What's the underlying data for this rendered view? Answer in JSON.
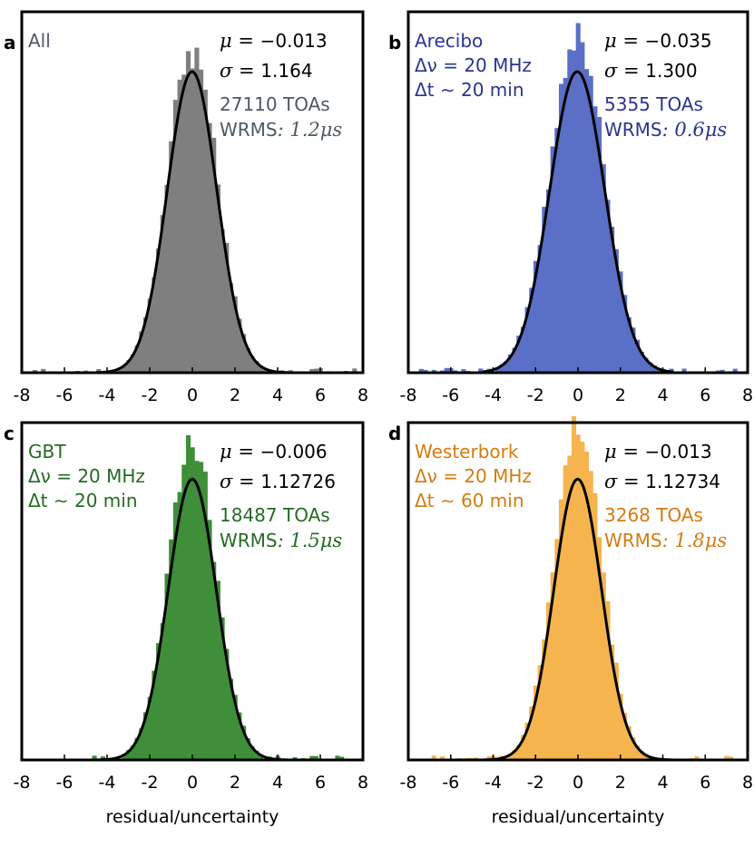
{
  "chart_data": [
    {
      "type": "bar",
      "panel_label": "a",
      "name": "All",
      "color": "#7f7f7f",
      "text_color": "#4d5a63",
      "mu_label": "μ = ",
      "mu_value": "−0.013",
      "sigma_label": "σ = ",
      "sigma_value": "1.164",
      "mu": -0.013,
      "sigma": 1.164,
      "lines": [],
      "toas": "27110 TOAs",
      "wrms_label": "WRMS",
      "wrms_value": ": 1.2μs",
      "peak": 1.07,
      "xlabel": "",
      "xlim": [
        -8,
        8
      ],
      "xticks": [
        "-8",
        "-6",
        "-4",
        "-2",
        "0",
        "2",
        "4",
        "6",
        "8"
      ]
    },
    {
      "type": "bar",
      "panel_label": "b",
      "name": "Arecibo",
      "color": "#5a6fc6",
      "text_color": "#2b3491",
      "mu_label": "μ = ",
      "mu_value": "−0.035",
      "sigma_label": "σ = ",
      "sigma_value": "1.300",
      "mu": -0.035,
      "sigma": 1.3,
      "lines": [
        "Δν =  20 MHz",
        "Δt ∼  20 min"
      ],
      "toas": "5355 TOAs",
      "wrms_label": "WRMS",
      "wrms_value": ": 0.6μs",
      "peak": 1.12,
      "xlabel": "",
      "xlim": [
        -8,
        8
      ],
      "xticks": [
        "-8",
        "-6",
        "-4",
        "-2",
        "0",
        "2",
        "4",
        "6",
        "8"
      ]
    },
    {
      "type": "bar",
      "panel_label": "c",
      "name": "GBT",
      "color": "#3e8e3a",
      "text_color": "#256b23",
      "mu_label": "μ = ",
      "mu_value": "−0.006",
      "sigma_label": "σ = ",
      "sigma_value": "1.12726",
      "mu": -0.006,
      "sigma": 1.12726,
      "lines": [
        "Δν =  20 MHz",
        "Δt ∼  20 min"
      ],
      "toas": "18487 TOAs",
      "wrms_label": "WRMS",
      "wrms_value": ": 1.5μs",
      "peak": 1.12,
      "xlabel": "residual/uncertainty",
      "xlim": [
        -8,
        8
      ],
      "xticks": [
        "-8",
        "-6",
        "-4",
        "-2",
        "0",
        "2",
        "4",
        "6",
        "8"
      ]
    },
    {
      "type": "bar",
      "panel_label": "d",
      "name": "Westerbork",
      "color": "#f5b44e",
      "text_color": "#d67a10",
      "mu_label": "μ = ",
      "mu_value": "−0.013",
      "sigma_label": "σ = ",
      "sigma_value": "1.12734",
      "mu": -0.013,
      "sigma": 1.12734,
      "lines": [
        "Δν =  20 MHz",
        "Δt ∼  60 min"
      ],
      "toas": "3268 TOAs",
      "wrms_label": "WRMS",
      "wrms_value": ": 1.8μs",
      "peak": 1.18,
      "xlabel": "residual/uncertainty",
      "xlim": [
        -8,
        8
      ],
      "xticks": [
        "-8",
        "-6",
        "-4",
        "-2",
        "0",
        "2",
        "4",
        "6",
        "8"
      ]
    }
  ]
}
